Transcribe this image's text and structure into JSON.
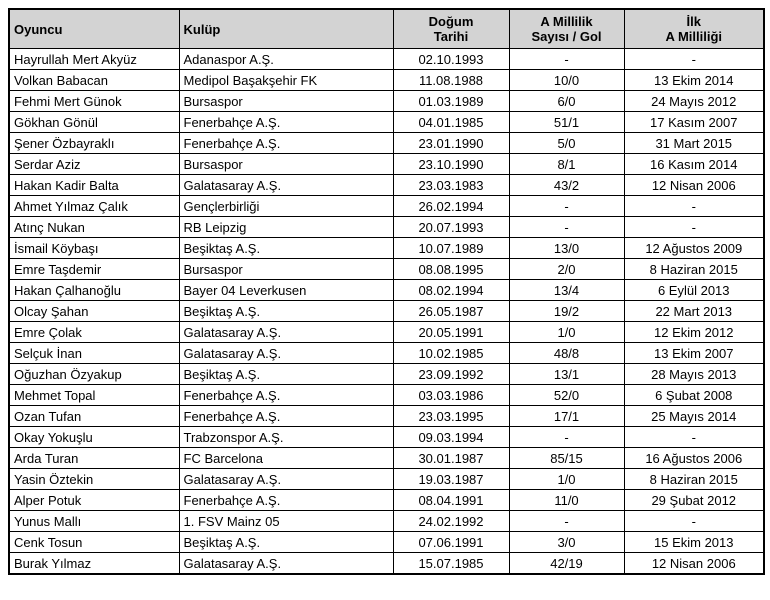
{
  "colors": {
    "header_bg": "#d3d3d3",
    "row_bg": "#ffffff",
    "border": "#000000",
    "text": "#000000"
  },
  "table": {
    "columns": [
      {
        "id": "player",
        "label": "Oyuncu",
        "label2": "",
        "align": "left"
      },
      {
        "id": "club",
        "label": "Kulüp",
        "label2": "",
        "align": "left"
      },
      {
        "id": "birth",
        "label": "Doğum",
        "label2": "Tarihi",
        "align": "center"
      },
      {
        "id": "caps",
        "label": "A Millilik",
        "label2": "Sayısı / Gol",
        "align": "center"
      },
      {
        "id": "first_cap",
        "label": "İlk",
        "label2": "A Milliliği",
        "align": "center"
      }
    ],
    "rows": [
      [
        "Hayrullah Mert Akyüz",
        "Adanaspor A.Ş.",
        "02.10.1993",
        "-",
        "-"
      ],
      [
        "Volkan Babacan",
        "Medipol Başakşehir FK",
        "11.08.1988",
        "10/0",
        "13 Ekim 2014"
      ],
      [
        "Fehmi Mert Günok",
        "Bursaspor",
        "01.03.1989",
        "6/0",
        "24 Mayıs 2012"
      ],
      [
        "Gökhan Gönül",
        "Fenerbahçe A.Ş.",
        "04.01.1985",
        "51/1",
        "17 Kasım 2007"
      ],
      [
        "Şener Özbayraklı",
        "Fenerbahçe A.Ş.",
        "23.01.1990",
        "5/0",
        "31 Mart 2015"
      ],
      [
        "Serdar Aziz",
        "Bursaspor",
        "23.10.1990",
        "8/1",
        "16 Kasım 2014"
      ],
      [
        "Hakan Kadir Balta",
        "Galatasaray A.Ş.",
        "23.03.1983",
        "43/2",
        "12 Nisan 2006"
      ],
      [
        "Ahmet Yılmaz Çalık",
        "Gençlerbirliği",
        "26.02.1994",
        "-",
        "-"
      ],
      [
        "Atınç Nukan",
        "RB Leipzig",
        "20.07.1993",
        "-",
        "-"
      ],
      [
        "İsmail Köybaşı",
        "Beşiktaş A.Ş.",
        "10.07.1989",
        "13/0",
        "12 Ağustos 2009"
      ],
      [
        "Emre Taşdemir",
        "Bursaspor",
        "08.08.1995",
        "2/0",
        "8 Haziran 2015"
      ],
      [
        "Hakan Çalhanoğlu",
        "Bayer 04 Leverkusen",
        "08.02.1994",
        "13/4",
        "6 Eylül 2013"
      ],
      [
        "Olcay Şahan",
        "Beşiktaş A.Ş.",
        "26.05.1987",
        "19/2",
        "22 Mart 2013"
      ],
      [
        "Emre Çolak",
        "Galatasaray A.Ş.",
        "20.05.1991",
        "1/0",
        "12 Ekim 2012"
      ],
      [
        "Selçuk İnan",
        "Galatasaray A.Ş.",
        "10.02.1985",
        "48/8",
        "13 Ekim 2007"
      ],
      [
        "Oğuzhan Özyakup",
        "Beşiktaş A.Ş.",
        "23.09.1992",
        "13/1",
        "28 Mayıs 2013"
      ],
      [
        "Mehmet Topal",
        "Fenerbahçe A.Ş.",
        "03.03.1986",
        "52/0",
        "6 Şubat 2008"
      ],
      [
        "Ozan Tufan",
        "Fenerbahçe A.Ş.",
        "23.03.1995",
        "17/1",
        "25 Mayıs 2014"
      ],
      [
        "Okay Yokuşlu",
        "Trabzonspor A.Ş.",
        "09.03.1994",
        "-",
        "-"
      ],
      [
        "Arda Turan",
        "FC Barcelona",
        "30.01.1987",
        "85/15",
        "16 Ağustos 2006"
      ],
      [
        "Yasin Öztekin",
        "Galatasaray A.Ş.",
        "19.03.1987",
        "1/0",
        "8 Haziran 2015"
      ],
      [
        "Alper Potuk",
        "Fenerbahçe A.Ş.",
        "08.04.1991",
        "11/0",
        "29 Şubat 2012"
      ],
      [
        "Yunus Mallı",
        "1. FSV Mainz 05",
        "24.02.1992",
        "-",
        "-"
      ],
      [
        "Cenk Tosun",
        "Beşiktaş A.Ş.",
        "07.06.1991",
        "3/0",
        "15 Ekim 2013"
      ],
      [
        "Burak Yılmaz",
        "Galatasaray A.Ş.",
        "15.07.1985",
        "42/19",
        "12 Nisan 2006"
      ]
    ]
  },
  "chart_data": {
    "type": "table",
    "title": "",
    "columns": [
      "Oyuncu",
      "Kulüp",
      "Doğum Tarihi",
      "A Millilik Sayısı / Gol",
      "İlk A Milliliği"
    ],
    "rows_ref": "table.rows"
  }
}
